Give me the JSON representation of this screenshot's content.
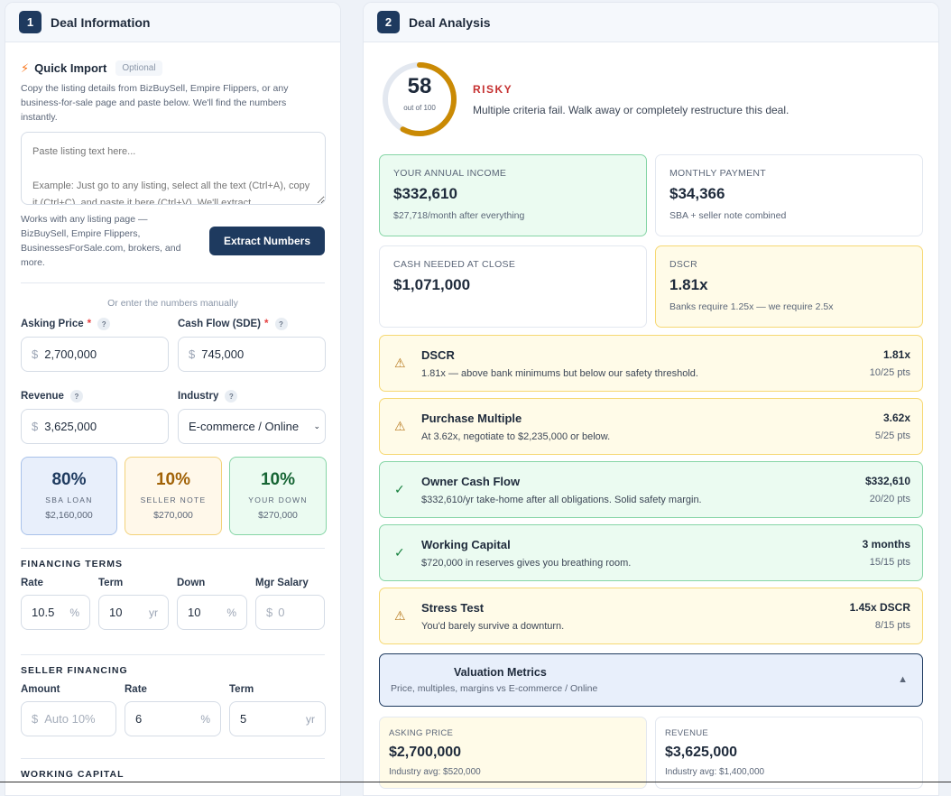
{
  "left": {
    "step": "1",
    "title": "Deal Information",
    "quick_import": {
      "title": "Quick Import",
      "badge": "Optional",
      "description": "Copy the listing details from BizBuySell, Empire Flippers, or any business-for-sale page and paste below. We'll find the numbers instantly.",
      "placeholder": "Paste listing text here...\n\nExample: Just go to any listing, select all the text (Ctrl+A), copy it (Ctrl+C), and paste it here (Ctrl+V). We'll extract",
      "works_with": "Works with any listing page — BizBuySell, Empire Flippers, BusinessesForSale.com, brokers, and more.",
      "button": "Extract Numbers"
    },
    "manual_label": "Or enter the numbers manually",
    "fields": {
      "asking_price": {
        "label": "Asking Price",
        "required": "*",
        "help": "?",
        "prefix": "$",
        "value": "2,700,000"
      },
      "cash_flow": {
        "label": "Cash Flow (SDE)",
        "required": "*",
        "help": "?",
        "prefix": "$",
        "value": "745,000"
      },
      "revenue": {
        "label": "Revenue",
        "help": "?",
        "prefix": "$",
        "value": "3,625,000"
      },
      "industry": {
        "label": "Industry",
        "help": "?",
        "value": "E-commerce / Online"
      }
    },
    "allocation": [
      {
        "pct": "80%",
        "name": "SBA LOAN",
        "amount": "$2,160,000",
        "color": "#1e3a5f"
      },
      {
        "pct": "10%",
        "name": "SELLER NOTE",
        "amount": "$270,000",
        "color": "#a16207"
      },
      {
        "pct": "10%",
        "name": "YOUR DOWN",
        "amount": "$270,000",
        "color": "#166534"
      }
    ],
    "financing_terms": {
      "title": "FINANCING TERMS",
      "rate": {
        "label": "Rate",
        "value": "10.5",
        "suffix": "%"
      },
      "term": {
        "label": "Term",
        "value": "10",
        "suffix": "yr"
      },
      "down": {
        "label": "Down",
        "value": "10",
        "suffix": "%"
      },
      "mgr_salary": {
        "label": "Mgr Salary",
        "prefix": "$",
        "placeholder": "0"
      }
    },
    "seller_financing": {
      "title": "SELLER FINANCING",
      "amount": {
        "label": "Amount",
        "prefix": "$",
        "placeholder": "Auto 10%"
      },
      "rate": {
        "label": "Rate",
        "value": "6",
        "suffix": "%"
      },
      "term": {
        "label": "Term",
        "value": "5",
        "suffix": "yr"
      }
    },
    "working_capital_title": "WORKING CAPITAL"
  },
  "right": {
    "step": "2",
    "title": "Deal Analysis",
    "score": {
      "value": "58",
      "out_of": "out of 100",
      "fraction": 0.58,
      "color": "#ca8a04",
      "verdict": "RISKY",
      "verdict_color": "#c53030",
      "message": "Multiple criteria fail. Walk away or completely restructure this deal."
    },
    "metrics": [
      {
        "label": "YOUR ANNUAL INCOME",
        "value": "$332,610",
        "sub": "$27,718/month after everything",
        "tone": "green"
      },
      {
        "label": "MONTHLY PAYMENT",
        "value": "$34,366",
        "sub": "SBA + seller note combined",
        "tone": "neutral"
      },
      {
        "label": "CASH NEEDED AT CLOSE",
        "value": "$1,071,000",
        "sub": "",
        "tone": "neutral"
      },
      {
        "label": "DSCR",
        "value": "1.81x",
        "sub": "Banks require 1.25x — we require 2.5x",
        "tone": "yellow"
      }
    ],
    "criteria": [
      {
        "status": "warning",
        "icon": "⚠",
        "name": "DSCR",
        "desc": "1.81x — above bank minimums but below our safety threshold.",
        "value": "1.81x",
        "points": "10/25 pts"
      },
      {
        "status": "warning",
        "icon": "⚠",
        "name": "Purchase Multiple",
        "desc": "At 3.62x, negotiate to $2,235,000 or below.",
        "value": "3.62x",
        "points": "5/25 pts"
      },
      {
        "status": "pass",
        "icon": "✓",
        "name": "Owner Cash Flow",
        "desc": "$332,610/yr take-home after all obligations. Solid safety margin.",
        "value": "$332,610",
        "points": "20/20 pts"
      },
      {
        "status": "pass",
        "icon": "✓",
        "name": "Working Capital",
        "desc": "$720,000 in reserves gives you breathing room.",
        "value": "3 months",
        "points": "15/15 pts"
      },
      {
        "status": "warning",
        "icon": "⚠",
        "name": "Stress Test",
        "desc": "You'd barely survive a downturn.",
        "value": "1.45x DSCR",
        "points": "8/15 pts"
      }
    ],
    "valuation": {
      "title": "Valuation Metrics",
      "subtitle": "Price, multiples, margins vs E-commerce / Online",
      "toggle": "▲",
      "cards": [
        {
          "label": "ASKING PRICE",
          "value": "$2,700,000",
          "sub": "Industry avg: $520,000",
          "tone": "yellow"
        },
        {
          "label": "REVENUE",
          "value": "$3,625,000",
          "sub": "Industry avg: $1,400,000",
          "tone": "neutral"
        }
      ]
    }
  }
}
